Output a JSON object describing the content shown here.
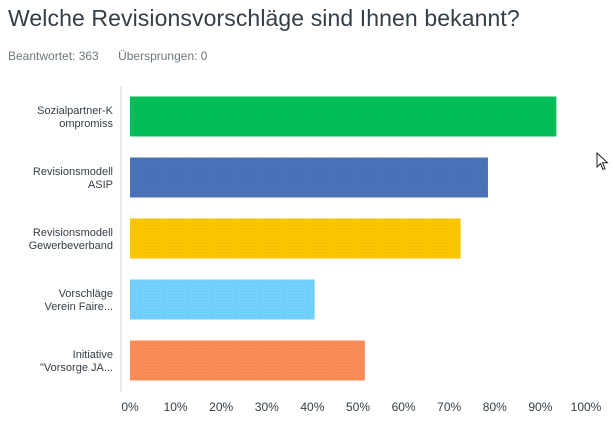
{
  "page": {
    "title": "Welche Revisionsvorschläge sind Ihnen bekannt?",
    "answered_label": "Beantwortet: 363",
    "skipped_label": "Übersprungen: 0"
  },
  "chart_data": {
    "type": "bar",
    "orientation": "horizontal",
    "categories": [
      [
        "Sozialpartner-K",
        "ompromiss"
      ],
      [
        "Revisionsmodell",
        "ASIP"
      ],
      [
        "Revisionsmodell",
        "Gewerbeverband"
      ],
      [
        "Vorschläge",
        "Verein Faire..."
      ],
      [
        "Initiative",
        "\"Vorsorge JA..."
      ]
    ],
    "values": [
      93.5,
      78.5,
      72.5,
      40.5,
      51.5
    ],
    "colors": [
      "#00bf6f",
      "#507cb6",
      "#f9be00",
      "#6bc8cd",
      "#ff8b4f"
    ],
    "bar_colors": [
      "#00bf56",
      "#4a72b8",
      "#fbc600",
      "#73d0ff",
      "#fc8c57"
    ],
    "xlim": [
      0,
      100
    ],
    "xticks": [
      "0%",
      "10%",
      "20%",
      "30%",
      "40%",
      "50%",
      "60%",
      "70%",
      "80%",
      "90%",
      "100%"
    ],
    "xlabel": "",
    "ylabel": "",
    "title": "Welche Revisionsvorschläge sind Ihnen bekannt?",
    "grid": false
  },
  "icons": {
    "cursor": "mouse-pointer-icon"
  }
}
